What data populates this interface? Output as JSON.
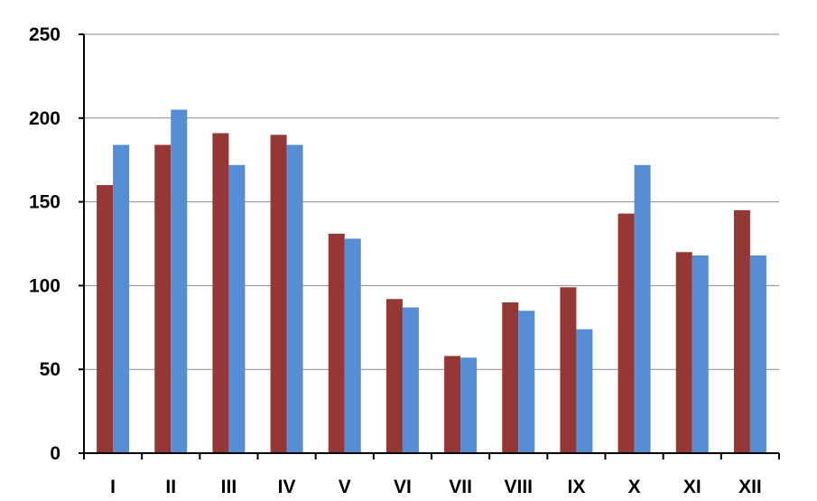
{
  "chart_data": {
    "type": "bar",
    "categories": [
      "I",
      "II",
      "III",
      "IV",
      "V",
      "VI",
      "VII",
      "VIII",
      "IX",
      "X",
      "XI",
      "XII"
    ],
    "series": [
      {
        "color": "#953735",
        "values": [
          160,
          184,
          191,
          190,
          131,
          92,
          58,
          90,
          99,
          143,
          120,
          145
        ]
      },
      {
        "color": "#558ED5",
        "values": [
          184,
          205,
          172,
          184,
          128,
          87,
          57,
          85,
          74,
          172,
          118,
          118
        ]
      }
    ],
    "ylim": [
      0,
      250
    ],
    "yticks": [
      0,
      50,
      100,
      150,
      200,
      250
    ],
    "ytick_labels": [
      "0",
      "50",
      "100",
      "150",
      "200",
      "250"
    ],
    "grid": true,
    "legend": false
  }
}
